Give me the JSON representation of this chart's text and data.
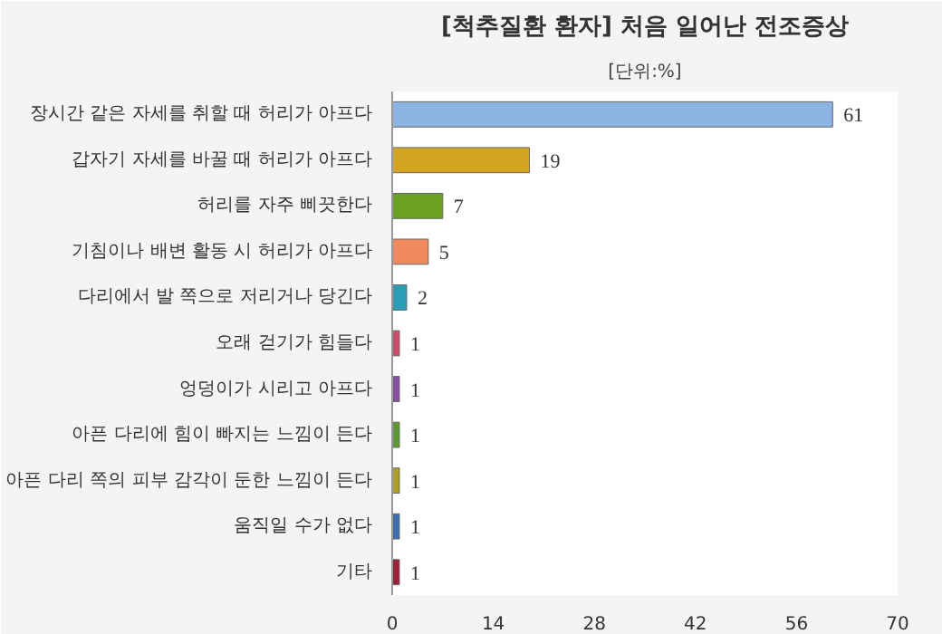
{
  "chart_data": {
    "type": "bar",
    "orientation": "horizontal",
    "title": "[척추질환 환자] 처음 일어난 전조증상",
    "subtitle": "[단위:%]",
    "categories": [
      "장시간 같은 자세를 취할 때 허리가 아프다",
      "갑자기 자세를 바꿀 때 허리가 아프다",
      "허리를 자주 삐끗한다",
      "기침이나 배변 활동 시 허리가 아프다",
      "다리에서 발 쪽으로 저리거나 당긴다",
      "오래 걷기가 힘들다",
      "엉덩이가 시리고 아프다",
      "아픈 다리에 힘이 빠지는 느낌이 든다",
      "아픈 다리 쪽의 피부 감각이 둔한 느낌이 든다",
      "움직일 수가 없다",
      "기타"
    ],
    "values": [
      61,
      19,
      7,
      5,
      2,
      1,
      1,
      1,
      1,
      1,
      1
    ],
    "colors": [
      "#8db4e2",
      "#d4a520",
      "#6aa121",
      "#f08a5d",
      "#2a9db5",
      "#d04a6a",
      "#8a4fa0",
      "#5a9a30",
      "#b0a020",
      "#3b6fb0",
      "#a0203a"
    ],
    "xlim": [
      0,
      70
    ],
    "xticks": [
      0,
      14,
      28,
      42,
      56,
      70
    ],
    "grid": false,
    "data_labels": true
  }
}
